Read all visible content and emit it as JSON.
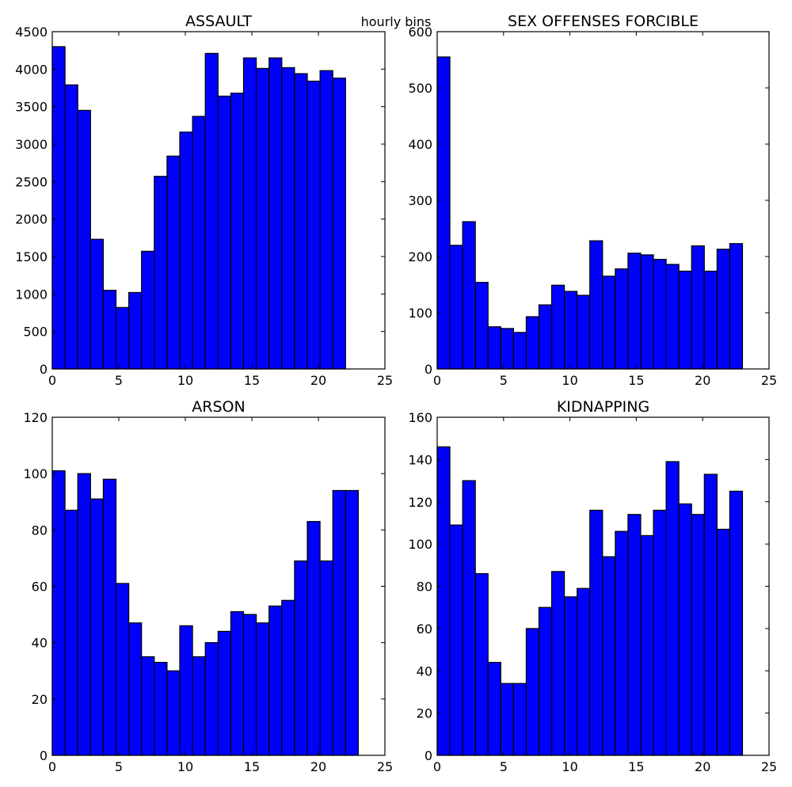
{
  "figure": {
    "suptitle": "hourly bins",
    "bar_color": "#0000ff",
    "edge_color": "#000000"
  },
  "chart_data": [
    {
      "type": "bar",
      "title": "ASSAULT",
      "x": [
        0,
        1,
        2,
        3,
        4,
        5,
        6,
        7,
        8,
        9,
        10,
        11,
        12,
        13,
        14,
        15,
        16,
        17,
        18,
        19,
        20,
        21,
        22
      ],
      "bin_width": 0.9583,
      "values": [
        4300,
        3790,
        3450,
        1730,
        1050,
        820,
        1020,
        1570,
        2570,
        2840,
        3160,
        3370,
        4210,
        3640,
        3680,
        4150,
        4010,
        4150,
        4020,
        3940,
        3840,
        3980,
        3880
      ],
      "last_bar": {
        "x": 22.04,
        "value": 3640
      },
      "xlim": [
        0,
        25
      ],
      "ylim": [
        0,
        4500
      ],
      "xticks": [
        0,
        5,
        10,
        15,
        20,
        25
      ],
      "yticks": [
        0,
        500,
        1000,
        1500,
        2000,
        2500,
        3000,
        3500,
        4000,
        4500
      ]
    },
    {
      "type": "bar",
      "title": "SEX OFFENSES FORCIBLE",
      "values": [
        555,
        220,
        262,
        154,
        75,
        72,
        65,
        93,
        114,
        149,
        138,
        131,
        228,
        165,
        178,
        206,
        203,
        195,
        186,
        174,
        219,
        174,
        213,
        223
      ],
      "xlim": [
        0,
        25
      ],
      "ylim": [
        0,
        600
      ],
      "xticks": [
        0,
        5,
        10,
        15,
        20,
        25
      ],
      "yticks": [
        0,
        100,
        200,
        300,
        400,
        500,
        600
      ]
    },
    {
      "type": "bar",
      "title": "ARSON",
      "values": [
        101,
        87,
        100,
        91,
        98,
        61,
        47,
        35,
        33,
        30,
        46,
        35,
        40,
        44,
        51,
        50,
        47,
        53,
        55,
        69,
        83,
        69,
        94,
        94
      ],
      "xlim": [
        0,
        25
      ],
      "ylim": [
        0,
        120
      ],
      "xticks": [
        0,
        5,
        10,
        15,
        20,
        25
      ],
      "yticks": [
        0,
        20,
        40,
        60,
        80,
        100,
        120
      ]
    },
    {
      "type": "bar",
      "title": "KIDNAPPING",
      "values": [
        146,
        109,
        130,
        86,
        44,
        34,
        34,
        60,
        70,
        87,
        75,
        79,
        116,
        94,
        106,
        114,
        104,
        116,
        139,
        119,
        114,
        133,
        107,
        125
      ],
      "xlim": [
        0,
        25
      ],
      "ylim": [
        0,
        160
      ],
      "xticks": [
        0,
        5,
        10,
        15,
        20,
        25
      ],
      "yticks": [
        0,
        20,
        40,
        60,
        80,
        100,
        120,
        140,
        160
      ]
    }
  ]
}
